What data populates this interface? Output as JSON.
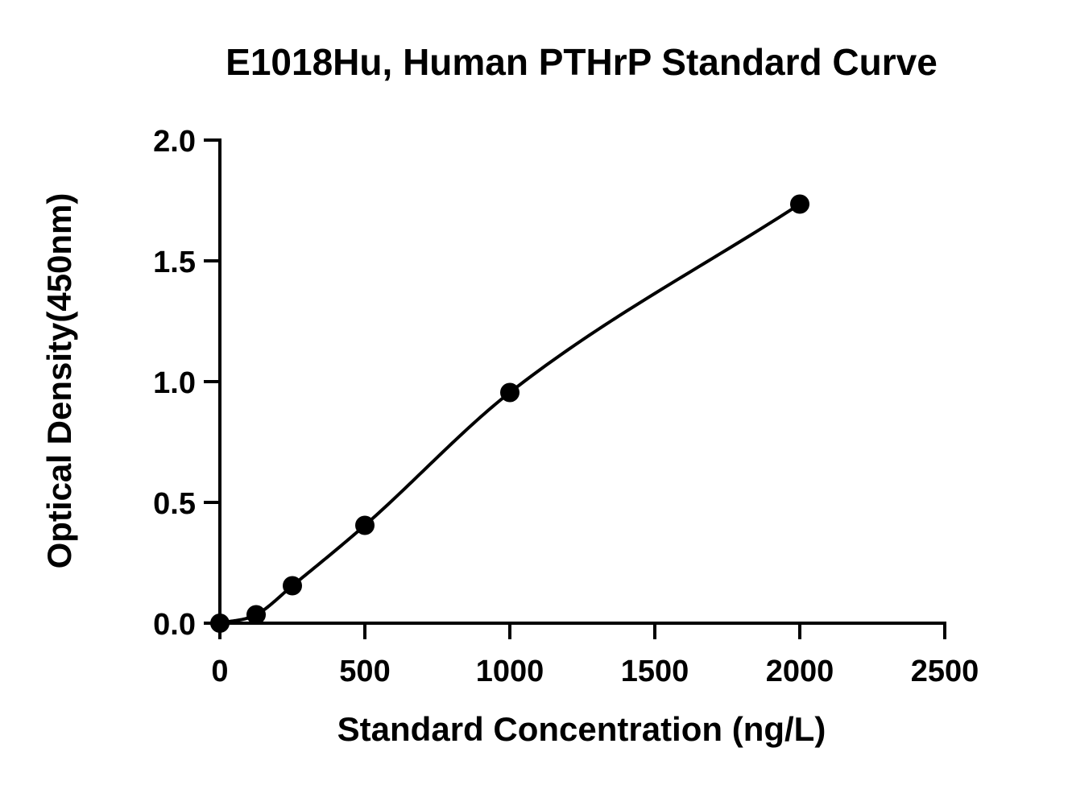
{
  "chart_data": {
    "type": "scatter",
    "title": "E1018Hu, Human PTHrP Standard Curve",
    "xlabel": "Standard Concentration (ng/L)",
    "ylabel": "Optical Density(450nm)",
    "xlim": [
      0,
      2500
    ],
    "ylim": [
      0,
      2.0
    ],
    "x_ticks": [
      0,
      500,
      1000,
      1500,
      2000,
      2500
    ],
    "x_tick_labels": [
      "0",
      "500",
      "1000",
      "1500",
      "2000",
      "2500"
    ],
    "y_ticks": [
      0,
      0.5,
      1.0,
      1.5,
      2.0
    ],
    "y_tick_labels": [
      "0.0",
      "0.5",
      "1.0",
      "1.5",
      "2.0"
    ],
    "grid": false,
    "legend": "none",
    "series": [
      {
        "x": [
          0,
          125,
          250,
          500,
          1000,
          2000
        ],
        "y": [
          0.0,
          0.035,
          0.155,
          0.405,
          0.955,
          1.735
        ]
      }
    ],
    "fit_curve": true,
    "colors": {
      "points": "#000000",
      "curve": "#000000",
      "axes": "#000000"
    }
  }
}
